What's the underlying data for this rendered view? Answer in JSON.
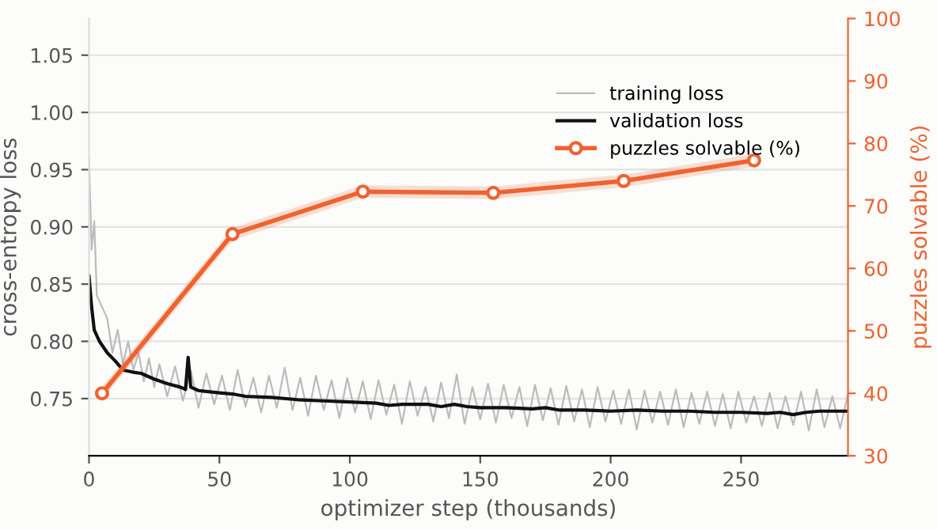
{
  "chart_data": {
    "type": "line",
    "xlabel": "optimizer step (thousands)",
    "ylabel": "cross-entropy loss",
    "y2label": "puzzles solvable (%)",
    "xlim": [
      0,
      291
    ],
    "xticks": [
      0,
      50,
      100,
      150,
      200,
      250
    ],
    "ylim": [
      0.7,
      1.082
    ],
    "yticks": [
      0.75,
      {
        "value": 0.8,
        "label": "0.80"
      },
      0.85,
      {
        "value": 0.9,
        "label": "0.90"
      },
      0.95,
      {
        "value": 1.0,
        "label": "1.00"
      },
      1.05
    ],
    "y2lim": [
      30,
      100
    ],
    "y2ticks": [
      30,
      40,
      50,
      60,
      70,
      80,
      90,
      100
    ],
    "grid": "y",
    "legend": "top right",
    "series": [
      {
        "name": "training loss",
        "color": "#bbbbbb",
        "marker": "none",
        "x": [
          0,
          1,
          2,
          3,
          5,
          7,
          9,
          11,
          13,
          15,
          17,
          19,
          21,
          23,
          25,
          27,
          30,
          33,
          36,
          39,
          42,
          45,
          48,
          51,
          54,
          57,
          60,
          63,
          66,
          69,
          72,
          75,
          78,
          81,
          84,
          87,
          90,
          93,
          96,
          99,
          102,
          105,
          108,
          111,
          114,
          117,
          120,
          123,
          126,
          129,
          132,
          135,
          138,
          141,
          144,
          147,
          150,
          153,
          156,
          159,
          162,
          165,
          168,
          171,
          174,
          177,
          180,
          183,
          186,
          189,
          192,
          195,
          198,
          201,
          204,
          207,
          210,
          213,
          216,
          219,
          222,
          225,
          228,
          231,
          234,
          237,
          240,
          243,
          246,
          249,
          252,
          255,
          258,
          261,
          264,
          267,
          270,
          273,
          276,
          279,
          282,
          285,
          288,
          291
        ],
        "values": [
          0.96,
          0.88,
          0.905,
          0.84,
          0.83,
          0.82,
          0.79,
          0.81,
          0.78,
          0.8,
          0.775,
          0.79,
          0.765,
          0.785,
          0.76,
          0.78,
          0.752,
          0.778,
          0.748,
          0.775,
          0.742,
          0.772,
          0.745,
          0.77,
          0.74,
          0.775,
          0.743,
          0.768,
          0.738,
          0.77,
          0.742,
          0.777,
          0.74,
          0.768,
          0.735,
          0.77,
          0.74,
          0.766,
          0.733,
          0.768,
          0.738,
          0.765,
          0.732,
          0.766,
          0.736,
          0.762,
          0.728,
          0.765,
          0.735,
          0.76,
          0.73,
          0.764,
          0.733,
          0.771,
          0.728,
          0.76,
          0.732,
          0.763,
          0.729,
          0.762,
          0.733,
          0.76,
          0.726,
          0.762,
          0.731,
          0.759,
          0.727,
          0.761,
          0.73,
          0.758,
          0.725,
          0.76,
          0.73,
          0.757,
          0.728,
          0.758,
          0.723,
          0.757,
          0.729,
          0.756,
          0.727,
          0.758,
          0.725,
          0.755,
          0.728,
          0.756,
          0.726,
          0.754,
          0.724,
          0.756,
          0.729,
          0.752,
          0.726,
          0.755,
          0.724,
          0.752,
          0.727,
          0.756,
          0.722,
          0.758,
          0.725,
          0.752,
          0.724,
          0.754
        ]
      },
      {
        "name": "validation loss",
        "color": "#111111",
        "marker": "none",
        "x": [
          0,
          1,
          2,
          4,
          7,
          10,
          13,
          17,
          20,
          25,
          30,
          35,
          37,
          38,
          39,
          42,
          50,
          55,
          60,
          70,
          80,
          90,
          100,
          110,
          115,
          120,
          130,
          135,
          140,
          145,
          150,
          160,
          170,
          175,
          180,
          190,
          200,
          210,
          220,
          230,
          240,
          250,
          260,
          265,
          270,
          275,
          280,
          291
        ],
        "values": [
          0.857,
          0.83,
          0.81,
          0.8,
          0.79,
          0.783,
          0.775,
          0.773,
          0.772,
          0.767,
          0.763,
          0.76,
          0.758,
          0.786,
          0.76,
          0.757,
          0.755,
          0.754,
          0.752,
          0.751,
          0.749,
          0.748,
          0.747,
          0.746,
          0.744,
          0.745,
          0.745,
          0.743,
          0.745,
          0.743,
          0.742,
          0.742,
          0.741,
          0.742,
          0.74,
          0.74,
          0.739,
          0.74,
          0.739,
          0.739,
          0.738,
          0.738,
          0.737,
          0.738,
          0.736,
          0.738,
          0.739,
          0.739
        ]
      },
      {
        "name": "puzzles solvable (%)",
        "color": "#f0622f",
        "marker": "circle",
        "axis": "y2",
        "x": [
          5,
          55,
          105,
          155,
          205,
          255
        ],
        "values": [
          40,
          65.5,
          72.3,
          72.1,
          74,
          77.3
        ],
        "lower": [
          39,
          64.5,
          71.3,
          71.1,
          73,
          76.3
        ],
        "upper": [
          41,
          66.5,
          73.3,
          73.1,
          75,
          78.3
        ]
      }
    ]
  }
}
